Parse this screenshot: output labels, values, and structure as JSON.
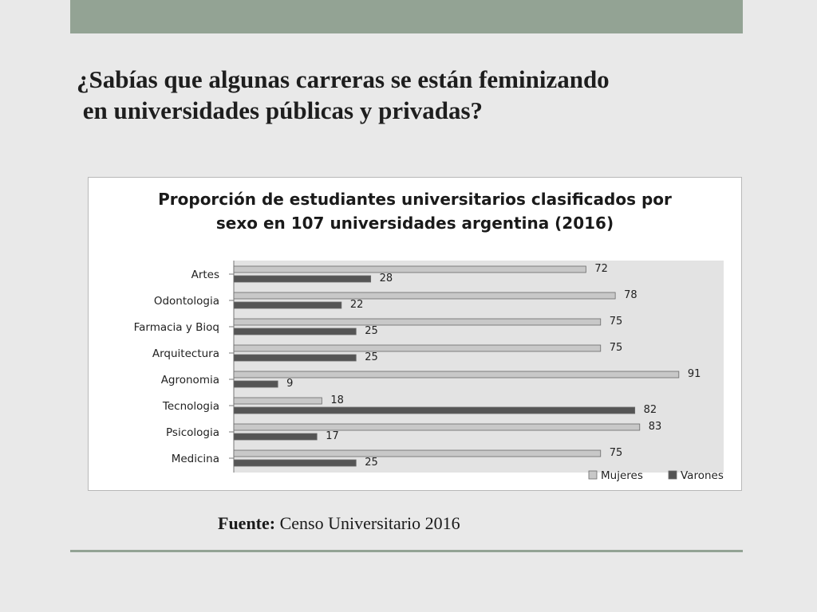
{
  "slide": {
    "title_line1": "¿Sabías que algunas carreras se están feminizando",
    "title_line2": " en universidades públicas y privadas?",
    "source_label": "Fuente:",
    "source_text": " Censo Universitario 2016"
  },
  "colors": {
    "accent": "#93a394",
    "mujeres": "#c8c8c8",
    "varones": "#555555",
    "plot_bg": "#e3e3e3"
  },
  "chart_data": {
    "type": "bar",
    "orientation": "horizontal",
    "title_line1": "Proporción de estudiantes universitarios clasificados por",
    "title_line2": "sexo en 107 universidades argentina (2016)",
    "categories": [
      "Artes",
      "Odontologia",
      "Farmacia y Bioq",
      "Arquitectura",
      "Agronomia",
      "Tecnologia",
      "Psicologia",
      "Medicina"
    ],
    "series": [
      {
        "name": "Mujeres",
        "values": [
          72,
          78,
          75,
          75,
          91,
          18,
          83,
          75
        ]
      },
      {
        "name": "Varones",
        "values": [
          28,
          22,
          25,
          25,
          9,
          82,
          17,
          25
        ]
      }
    ],
    "xlim": [
      0,
      100
    ],
    "grid": false,
    "legend_position": "bottom-right"
  }
}
